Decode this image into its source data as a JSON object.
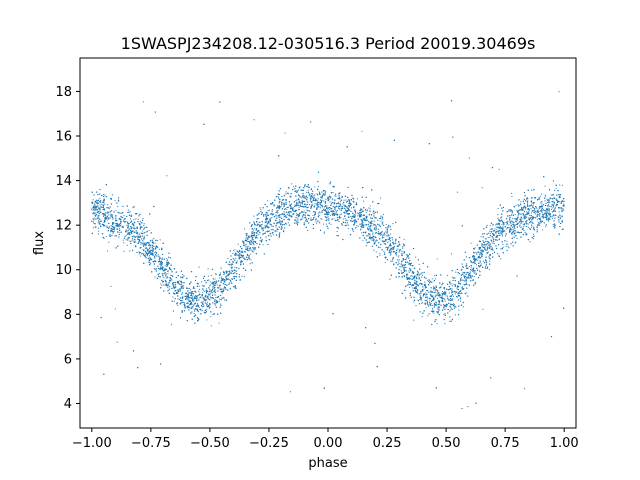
{
  "chart_data": {
    "type": "scatter",
    "title": "1SWASPJ234208.12-030516.3 Period 20019.30469s",
    "xlabel": "phase",
    "ylabel": "flux",
    "xlim": [
      -1.05,
      1.05
    ],
    "ylim": [
      2.9,
      19.5
    ],
    "x_ticks": [
      -1.0,
      -0.75,
      -0.5,
      -0.25,
      0.0,
      0.25,
      0.5,
      0.75,
      1.0
    ],
    "x_tick_labels": [
      "−1.00",
      "−0.75",
      "−0.50",
      "−0.25",
      "0.00",
      "0.25",
      "0.50",
      "0.75",
      "1.00"
    ],
    "y_ticks": [
      4,
      6,
      8,
      10,
      12,
      14,
      16,
      18
    ],
    "y_tick_labels": [
      "4",
      "6",
      "8",
      "10",
      "12",
      "14",
      "16",
      "18"
    ],
    "grid": false,
    "legend": "none",
    "series": [
      {
        "color": "#1f77b4",
        "marker_size": 0.6,
        "x": [
          -1.0,
          -0.95,
          -0.9,
          -0.85,
          -0.8,
          -0.75,
          -0.7,
          -0.65,
          -0.6,
          -0.55,
          -0.5,
          -0.45,
          -0.4,
          -0.35,
          -0.3,
          -0.25,
          -0.2,
          -0.15,
          -0.1,
          -0.05,
          0.0,
          0.05,
          0.1,
          0.15,
          0.2,
          0.25,
          0.3,
          0.35,
          0.4,
          0.45,
          0.5,
          0.55,
          0.6,
          0.65,
          0.7,
          0.75,
          0.8,
          0.85,
          0.9,
          0.95,
          1.0
        ],
        "y": [
          12.7,
          12.5,
          12.2,
          11.9,
          11.5,
          10.9,
          10.1,
          9.3,
          8.8,
          8.6,
          8.8,
          9.2,
          10.0,
          10.9,
          11.6,
          12.1,
          12.5,
          12.7,
          12.9,
          12.9,
          12.8,
          12.7,
          12.5,
          12.2,
          11.8,
          11.3,
          10.6,
          9.8,
          9.1,
          8.7,
          8.7,
          9.1,
          9.9,
          10.7,
          11.4,
          11.9,
          12.2,
          12.4,
          12.6,
          12.7,
          12.8
        ],
        "scatter_spread": 0.85
      }
    ]
  }
}
